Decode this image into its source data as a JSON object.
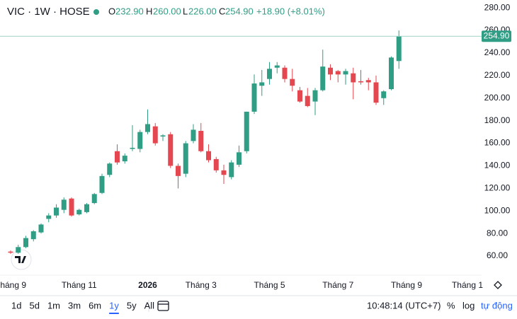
{
  "header": {
    "symbol": "VIC · 1W · HOSE",
    "open_label": "O",
    "open": "232.90",
    "high_label": "H",
    "high": "260.00",
    "low_label": "L",
    "low": "226.00",
    "close_label": "C",
    "close": "254.90",
    "change": "+18.90 (+8.01%)"
  },
  "chart_data": {
    "type": "candlestick",
    "categories": [
      "Tháng 9",
      null,
      null,
      null,
      null,
      null,
      null,
      null,
      null,
      "Tháng 11",
      null,
      null,
      null,
      null,
      null,
      null,
      null,
      null,
      "2026",
      null,
      null,
      null,
      null,
      null,
      null,
      "Tháng 3",
      null,
      null,
      null,
      null,
      null,
      null,
      null,
      null,
      "Tháng 5",
      null,
      null,
      null,
      null,
      null,
      null,
      null,
      null,
      "Tháng 7",
      null,
      null,
      null,
      null,
      null,
      null,
      null,
      null,
      "Tháng 9",
      null,
      null,
      null,
      null,
      null,
      null,
      null,
      "Tháng 1",
      null
    ],
    "open": [
      64,
      63,
      68,
      75,
      81,
      93,
      96,
      101,
      111,
      97,
      99,
      107,
      116,
      132,
      153,
      144,
      155,
      155,
      170,
      175,
      166,
      168,
      140,
      133,
      162,
      171,
      153,
      146,
      136,
      130,
      141,
      153,
      188,
      211,
      217,
      227,
      227,
      217,
      207,
      202,
      197,
      207,
      227,
      224,
      221,
      222,
      215,
      216,
      214,
      200,
      208,
      232.9,
      null,
      null,
      null,
      null,
      null,
      null,
      null,
      null,
      null,
      null
    ],
    "high": [
      65,
      70,
      78,
      83,
      89,
      98,
      106,
      112,
      112,
      102,
      107,
      116,
      133,
      143,
      159,
      151,
      176,
      172,
      190,
      178,
      168,
      170,
      142,
      162,
      177,
      178,
      159,
      148,
      141,
      145,
      158,
      188,
      221,
      225,
      232,
      232,
      229,
      226,
      210,
      209,
      209,
      243,
      230,
      225,
      226,
      227,
      225,
      218,
      220,
      207,
      237,
      260,
      null,
      null,
      null,
      null,
      null,
      null,
      null,
      null,
      null,
      null
    ],
    "low": [
      62,
      62,
      67,
      73,
      80,
      90,
      94,
      98,
      95,
      96,
      98,
      106,
      115,
      130,
      141,
      142,
      153,
      152,
      168,
      158,
      162,
      138,
      120,
      130,
      160,
      152,
      143,
      134,
      124,
      128,
      139,
      151,
      186,
      202,
      212,
      222,
      214,
      206,
      196,
      192,
      185,
      206,
      216,
      214,
      212,
      199,
      212,
      207,
      194,
      194,
      207,
      226,
      null,
      null,
      null,
      null,
      null,
      null,
      null,
      null,
      null,
      null
    ],
    "close": [
      63,
      68,
      76,
      82,
      88,
      96,
      103,
      110,
      96,
      101,
      106,
      115,
      131,
      142,
      143,
      149,
      156,
      170,
      177,
      160,
      167,
      140,
      131,
      160,
      172,
      153,
      145,
      136,
      132,
      143,
      152,
      188,
      213,
      214,
      226,
      229,
      217,
      211,
      197,
      193,
      207,
      228,
      221,
      221,
      224,
      214,
      214,
      214,
      196,
      206,
      236,
      254.9,
      null,
      null,
      null,
      null,
      null,
      null,
      null,
      null,
      null,
      null
    ],
    "up_color": "#2f9e85",
    "down_color": "#e4474f",
    "ylim": [
      45,
      287
    ],
    "yticks": [
      {
        "value": 60,
        "label": "60.00"
      },
      {
        "value": 80,
        "label": "80.00"
      },
      {
        "value": 100,
        "label": "100.00"
      },
      {
        "value": 120,
        "label": "120.00"
      },
      {
        "value": 140,
        "label": "140.00"
      },
      {
        "value": 160,
        "label": "160.00"
      },
      {
        "value": 180,
        "label": "180.00"
      },
      {
        "value": 200,
        "label": "200.00"
      },
      {
        "value": 220,
        "label": "220.00"
      },
      {
        "value": 240,
        "label": "240.00"
      },
      {
        "value": 260,
        "label": "260.00"
      },
      {
        "value": 280,
        "label": "280.00"
      }
    ],
    "last_price": {
      "value": 254.9,
      "label": "254.90"
    },
    "grid": false
  },
  "toolbar": {
    "ranges": [
      "1d",
      "5d",
      "1m",
      "3m",
      "6m",
      "1y",
      "5y",
      "All"
    ],
    "selected": "1y",
    "time": "10:48:14 (UTC+7)",
    "percent": "%",
    "log": "log",
    "auto": "tự động"
  }
}
